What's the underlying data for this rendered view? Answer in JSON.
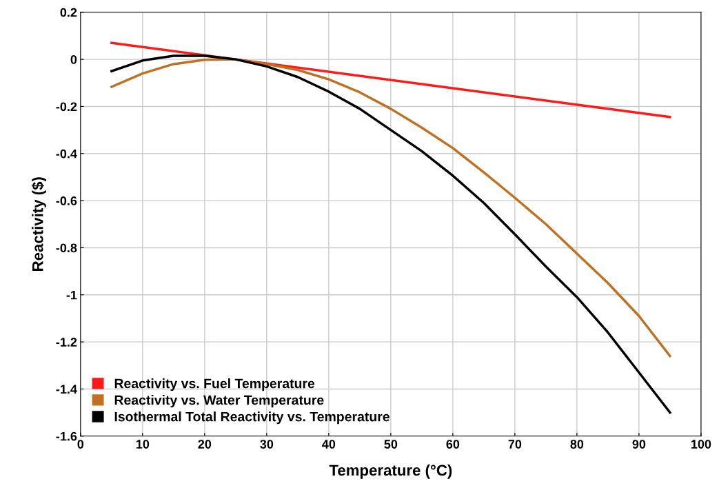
{
  "chart_data": {
    "type": "line",
    "xlabel": "Temperature (°C)",
    "ylabel": "Reactivity ($)",
    "x": [
      5,
      10,
      15,
      20,
      25,
      30,
      35,
      40,
      45,
      50,
      55,
      60,
      65,
      70,
      75,
      80,
      85,
      90,
      95
    ],
    "series": [
      {
        "name": "Reactivity vs. Fuel Temperature",
        "color": "#ff1a1a",
        "x": [
          5,
          95
        ],
        "values": [
          0.07,
          -0.245
        ]
      },
      {
        "name": "Reactivity vs. Water Temperature",
        "color": "#c07020",
        "values": [
          -0.117,
          -0.06,
          -0.02,
          -0.002,
          0,
          -0.02,
          -0.045,
          -0.085,
          -0.14,
          -0.21,
          -0.29,
          -0.377,
          -0.48,
          -0.588,
          -0.7,
          -0.825,
          -0.95,
          -1.09,
          -1.26
        ]
      },
      {
        "name": "Isothermal Total Reactivity vs. Temperature",
        "color": "#000000",
        "values": [
          -0.05,
          -0.005,
          0.015,
          0.015,
          0,
          -0.03,
          -0.075,
          -0.137,
          -0.21,
          -0.3,
          -0.39,
          -0.494,
          -0.61,
          -0.743,
          -0.88,
          -1.01,
          -1.16,
          -1.33,
          -1.5
        ]
      }
    ],
    "xlim": [
      0,
      100
    ],
    "xticks": [
      0,
      10,
      20,
      30,
      40,
      50,
      60,
      70,
      80,
      90,
      100
    ],
    "ylim": [
      -1.6,
      0.2
    ],
    "yticks": [
      0.2,
      0,
      -0.2,
      -0.4,
      -0.6,
      -0.8,
      -1,
      -1.2,
      -1.4,
      -1.6
    ],
    "grid": true,
    "legend": "bottom left",
    "marker": "none",
    "line_style": "solid"
  }
}
